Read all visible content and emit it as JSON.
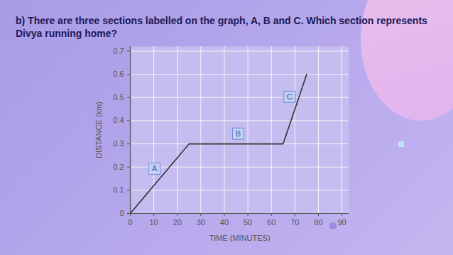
{
  "chart_data": {
    "type": "line",
    "title": "b) There are three sections labelled on the graph, A, B and C. Which section represents Divya running home?",
    "x_label": "TIME (MINUTES)",
    "y_label": "DISTANCE (km)",
    "x": [
      0,
      25,
      65,
      75
    ],
    "values": [
      0,
      0.3,
      0.3,
      0.6
    ],
    "color": "#333333",
    "xlim": [
      0,
      93
    ],
    "ylim": [
      0,
      0.72
    ],
    "xticks": [
      0,
      10,
      20,
      30,
      40,
      50,
      60,
      70,
      80,
      90
    ],
    "yticks": [
      0,
      0.1,
      0.2,
      0.3,
      0.4,
      0.5,
      0.6,
      0.7
    ],
    "grid": true,
    "annotations": [
      {
        "text": "A",
        "x": 10.3,
        "y": 0.193
      },
      {
        "text": "B",
        "x": 45.9,
        "y": 0.344
      },
      {
        "text": "C",
        "x": 67.7,
        "y": 0.503
      }
    ]
  }
}
